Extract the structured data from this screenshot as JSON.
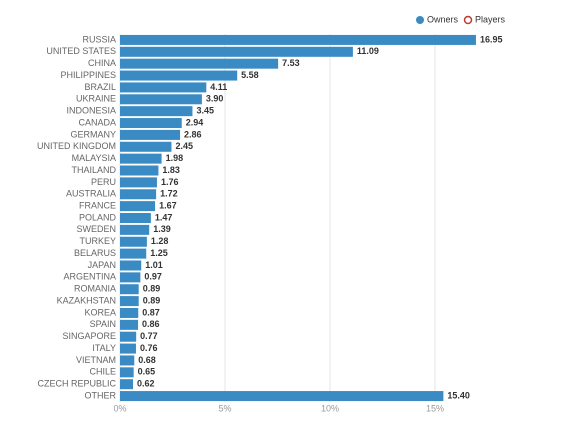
{
  "chart_data": {
    "type": "barh",
    "legend": [
      {
        "name": "Owners",
        "color": "#3a8ac4"
      },
      {
        "name": "Players",
        "color": "#c0392b"
      }
    ],
    "categories": [
      "RUSSIA",
      "UNITED STATES",
      "CHINA",
      "PHILIPPINES",
      "BRAZIL",
      "UKRAINE",
      "INDONESIA",
      "CANADA",
      "GERMANY",
      "UNITED KINGDOM",
      "MALAYSIA",
      "THAILAND",
      "PERU",
      "AUSTRALIA",
      "FRANCE",
      "POLAND",
      "SWEDEN",
      "TURKEY",
      "BELARUS",
      "JAPAN",
      "ARGENTINA",
      "ROMANIA",
      "KAZAKHSTAN",
      "KOREA",
      "SPAIN",
      "SINGAPORE",
      "ITALY",
      "VIETNAM",
      "CHILE",
      "CZECH REPUBLIC",
      "OTHER"
    ],
    "values": [
      16.95,
      11.09,
      7.53,
      5.58,
      4.11,
      3.9,
      3.45,
      2.94,
      2.86,
      2.45,
      1.98,
      1.83,
      1.76,
      1.72,
      1.67,
      1.47,
      1.39,
      1.28,
      1.25,
      1.01,
      0.97,
      0.89,
      0.89,
      0.87,
      0.86,
      0.77,
      0.76,
      0.68,
      0.65,
      0.62,
      15.4
    ],
    "value_labels": [
      "16.95",
      "11.09",
      "7.53",
      "5.58",
      "4.11",
      "3.90",
      "3.45",
      "2.94",
      "2.86",
      "2.45",
      "1.98",
      "1.83",
      "1.76",
      "1.72",
      "1.67",
      "1.47",
      "1.39",
      "1.28",
      "1.25",
      "1.01",
      "0.97",
      "0.89",
      "0.89",
      "0.87",
      "0.86",
      "0.77",
      "0.76",
      "0.68",
      "0.65",
      "0.62",
      "15.40"
    ],
    "xlim": [
      0,
      21
    ],
    "xticks": [
      {
        "value": 0,
        "label": "0%"
      },
      {
        "value": 5,
        "label": "5%"
      },
      {
        "value": 10,
        "label": "10%"
      },
      {
        "value": 15,
        "label": "15%"
      }
    ],
    "grid": true
  }
}
